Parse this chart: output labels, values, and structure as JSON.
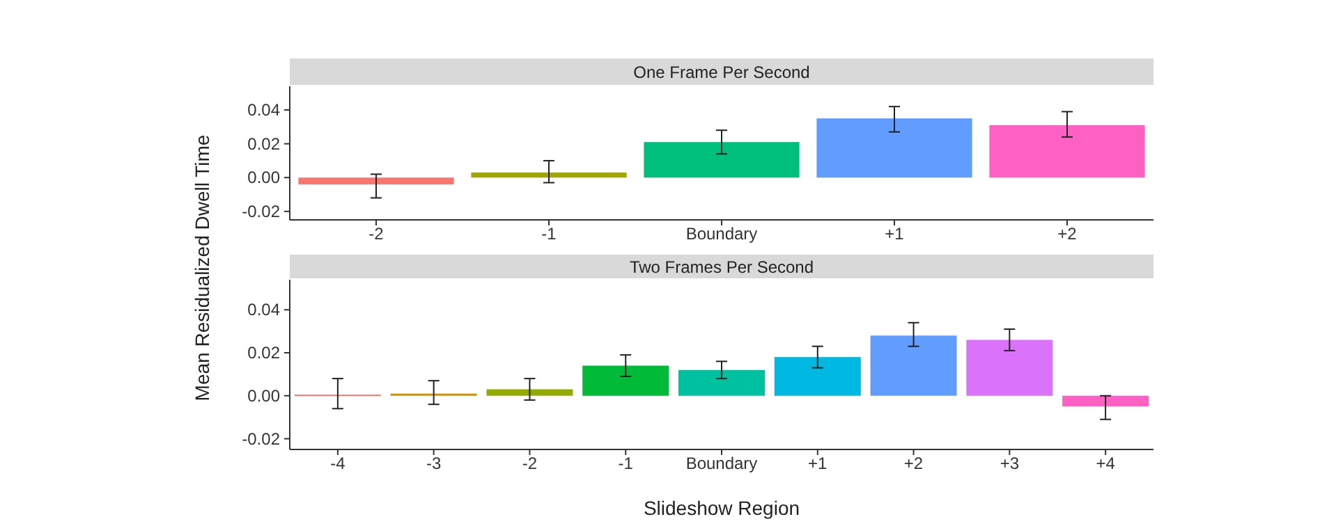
{
  "chart_data": [
    {
      "type": "bar",
      "title": "One Frame Per Second",
      "ylabel": "Mean Residualized Dwell Time",
      "categories": [
        "-2",
        "-1",
        "Boundary",
        "+1",
        "+2"
      ],
      "values": [
        -0.004,
        0.003,
        0.021,
        0.035,
        0.031
      ],
      "errors": [
        [
          -0.012,
          0.002
        ],
        [
          -0.003,
          0.01
        ],
        [
          0.014,
          0.028
        ],
        [
          0.027,
          0.042
        ],
        [
          0.024,
          0.039
        ]
      ],
      "colors": [
        "#f8766d",
        "#a3a500",
        "#00bf7d",
        "#619cff",
        "#ff61c3"
      ],
      "ylim": [
        -0.025,
        0.054
      ],
      "yticks": [
        {
          "value": -0.02,
          "label": "-0.02"
        },
        {
          "value": 0,
          "label": "0.00"
        },
        {
          "value": 0.02,
          "label": "0.02"
        },
        {
          "value": 0.04,
          "label": "0.04"
        }
      ],
      "grid": false
    },
    {
      "type": "bar",
      "title": "Two Frames Per Second",
      "xlabel": "Slideshow Region",
      "categories": [
        "-4",
        "-3",
        "-2",
        "-1",
        "Boundary",
        "+1",
        "+2",
        "+3",
        "+4"
      ],
      "values": [
        0.0005,
        0.001,
        0.003,
        0.014,
        0.012,
        0.018,
        0.028,
        0.026,
        -0.005
      ],
      "errors": [
        [
          -0.006,
          0.008
        ],
        [
          -0.004,
          0.007
        ],
        [
          -0.002,
          0.008
        ],
        [
          0.009,
          0.019
        ],
        [
          0.008,
          0.016
        ],
        [
          0.013,
          0.023
        ],
        [
          0.023,
          0.034
        ],
        [
          0.021,
          0.031
        ],
        [
          -0.011,
          0.0
        ]
      ],
      "colors": [
        "#f8766d",
        "#d39200",
        "#93aa00",
        "#00ba38",
        "#00c19f",
        "#00b9e3",
        "#619cff",
        "#db72fb",
        "#ff61c3"
      ],
      "ylim": [
        -0.025,
        0.054
      ],
      "yticks": [
        {
          "value": -0.02,
          "label": "-0.02"
        },
        {
          "value": 0,
          "label": "0.00"
        },
        {
          "value": 0.02,
          "label": "0.02"
        },
        {
          "value": 0.04,
          "label": "0.04"
        }
      ],
      "grid": false
    }
  ]
}
